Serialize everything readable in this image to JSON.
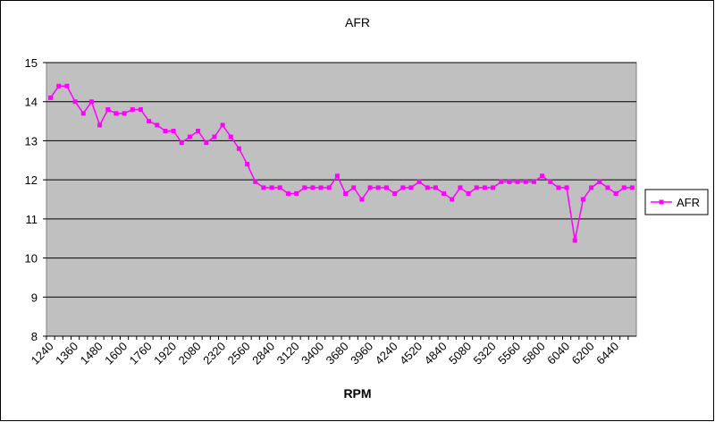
{
  "chart_data": {
    "type": "line",
    "title": "AFR",
    "x_label": "RPM",
    "categories": [
      "1240",
      null,
      null,
      "1360",
      null,
      null,
      "1480",
      null,
      null,
      "1600",
      null,
      null,
      "1760",
      null,
      null,
      "1920",
      null,
      null,
      "2080",
      null,
      null,
      "2320",
      null,
      null,
      "2560",
      null,
      null,
      "2840",
      null,
      null,
      "3120",
      null,
      null,
      "3400",
      null,
      null,
      "3680",
      null,
      null,
      "3960",
      null,
      null,
      "4240",
      null,
      null,
      "4520",
      null,
      null,
      "4840",
      null,
      null,
      "5080",
      null,
      null,
      "5320",
      null,
      null,
      "5560",
      null,
      null,
      "5800",
      null,
      null,
      "6040",
      null,
      null,
      "6200",
      null,
      null,
      "6440",
      null,
      null
    ],
    "series": [
      {
        "name": "AFR",
        "color": "#ff00ff",
        "values": [
          14.1,
          14.4,
          14.4,
          14.0,
          13.7,
          14.0,
          13.4,
          13.8,
          13.7,
          13.7,
          13.8,
          13.8,
          13.5,
          13.4,
          13.25,
          13.25,
          12.95,
          13.1,
          13.25,
          12.95,
          13.1,
          13.4,
          13.1,
          12.8,
          12.4,
          11.95,
          11.8,
          11.8,
          11.8,
          11.65,
          11.65,
          11.8,
          11.8,
          11.8,
          11.8,
          12.1,
          11.65,
          11.8,
          11.5,
          11.8,
          11.8,
          11.8,
          11.65,
          11.8,
          11.8,
          11.95,
          11.8,
          11.8,
          11.65,
          11.5,
          11.8,
          11.65,
          11.8,
          11.8,
          11.8,
          11.95,
          11.95,
          11.95,
          11.95,
          11.95,
          12.1,
          11.95,
          11.8,
          11.8,
          10.45,
          11.5,
          11.8,
          11.95,
          11.8,
          11.65,
          11.8,
          11.8
        ]
      }
    ],
    "ylim": [
      8,
      15
    ],
    "yticks": [
      8,
      9,
      10,
      11,
      12,
      13,
      14,
      15
    ],
    "grid": true,
    "legend": "right"
  }
}
